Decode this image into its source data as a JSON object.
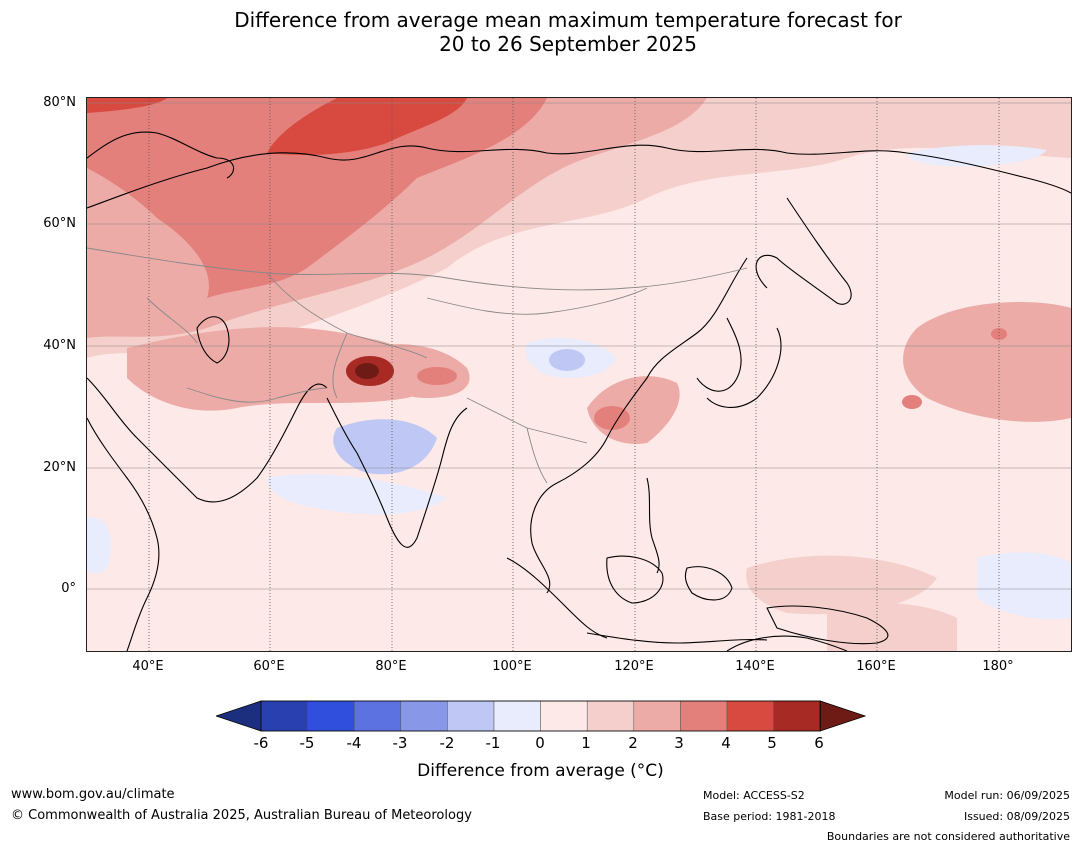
{
  "title": {
    "line1": "Difference from average mean maximum temperature forecast for",
    "line2": "20 to 26 September 2025"
  },
  "map": {
    "lat_labels": [
      "80°N",
      "60°N",
      "40°N",
      "20°N",
      "0°"
    ],
    "lon_labels": [
      "40°E",
      "60°E",
      "80°E",
      "100°E",
      "120°E",
      "140°E",
      "160°E",
      "180°"
    ]
  },
  "colorbar": {
    "ticks": [
      "-6",
      "-5",
      "-4",
      "-3",
      "-2",
      "-1",
      "0",
      "1",
      "2",
      "3",
      "4",
      "5",
      "6"
    ],
    "colors": [
      "#1c2f7e",
      "#2940b0",
      "#2f4fdc",
      "#5b72e0",
      "#8897e8",
      "#bfc8f4",
      "#e8ecfc",
      "#fde9e7",
      "#f5cfcb",
      "#ecaba7",
      "#e4807c",
      "#d84a40",
      "#a82a24",
      "#6e1b16"
    ],
    "label": "Difference from average (°C)"
  },
  "footer": {
    "website": "www.bom.gov.au/climate",
    "copyright": "© Commonwealth of Australia 2025, Australian Bureau of Meteorology",
    "model": "Model: ACCESS-S2",
    "base_period": "Base period: 1981-2018",
    "model_run": "Model run: 06/09/2025",
    "issued": "Issued: 08/09/2025",
    "boundaries": "Boundaries are not considered authoritative"
  }
}
